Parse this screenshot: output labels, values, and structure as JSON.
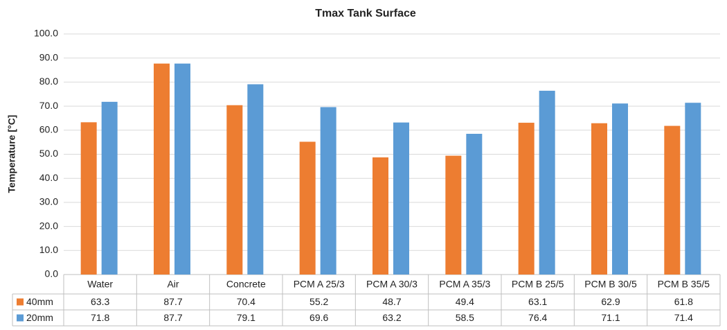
{
  "chart_data": {
    "type": "bar",
    "title": "Tmax Tank Surface",
    "y_label": "Temperature [°C]",
    "categories": [
      "Water",
      "Air",
      "Concrete",
      "PCM A 25/3",
      "PCM A 30/3",
      "PCM A 35/3",
      "PCM B 25/5",
      "PCM B 30/5",
      "PCM B 35/5"
    ],
    "series": [
      {
        "name": "40mm",
        "color": "#ed7d31",
        "values": [
          63.3,
          87.7,
          70.4,
          55.2,
          48.7,
          49.4,
          63.1,
          62.9,
          61.8
        ]
      },
      {
        "name": "20mm",
        "color": "#5b9bd5",
        "values": [
          71.8,
          87.7,
          79.1,
          69.6,
          63.2,
          58.5,
          76.4,
          71.1,
          71.4
        ]
      }
    ],
    "ylim": [
      0,
      100
    ],
    "yticks": [
      {
        "value": 0,
        "label": "0.0"
      },
      {
        "value": 10,
        "label": "10.0"
      },
      {
        "value": 20,
        "label": "20.0"
      },
      {
        "value": 30,
        "label": "30.0"
      },
      {
        "value": 40,
        "label": "40.0"
      },
      {
        "value": 50,
        "label": "50.0"
      },
      {
        "value": 60,
        "label": "60.0"
      },
      {
        "value": 70,
        "label": "70.0"
      },
      {
        "value": 80,
        "label": "80.0"
      },
      {
        "value": 90,
        "label": "90.0"
      },
      {
        "value": 100,
        "label": "100.0"
      }
    ],
    "grid": true
  }
}
